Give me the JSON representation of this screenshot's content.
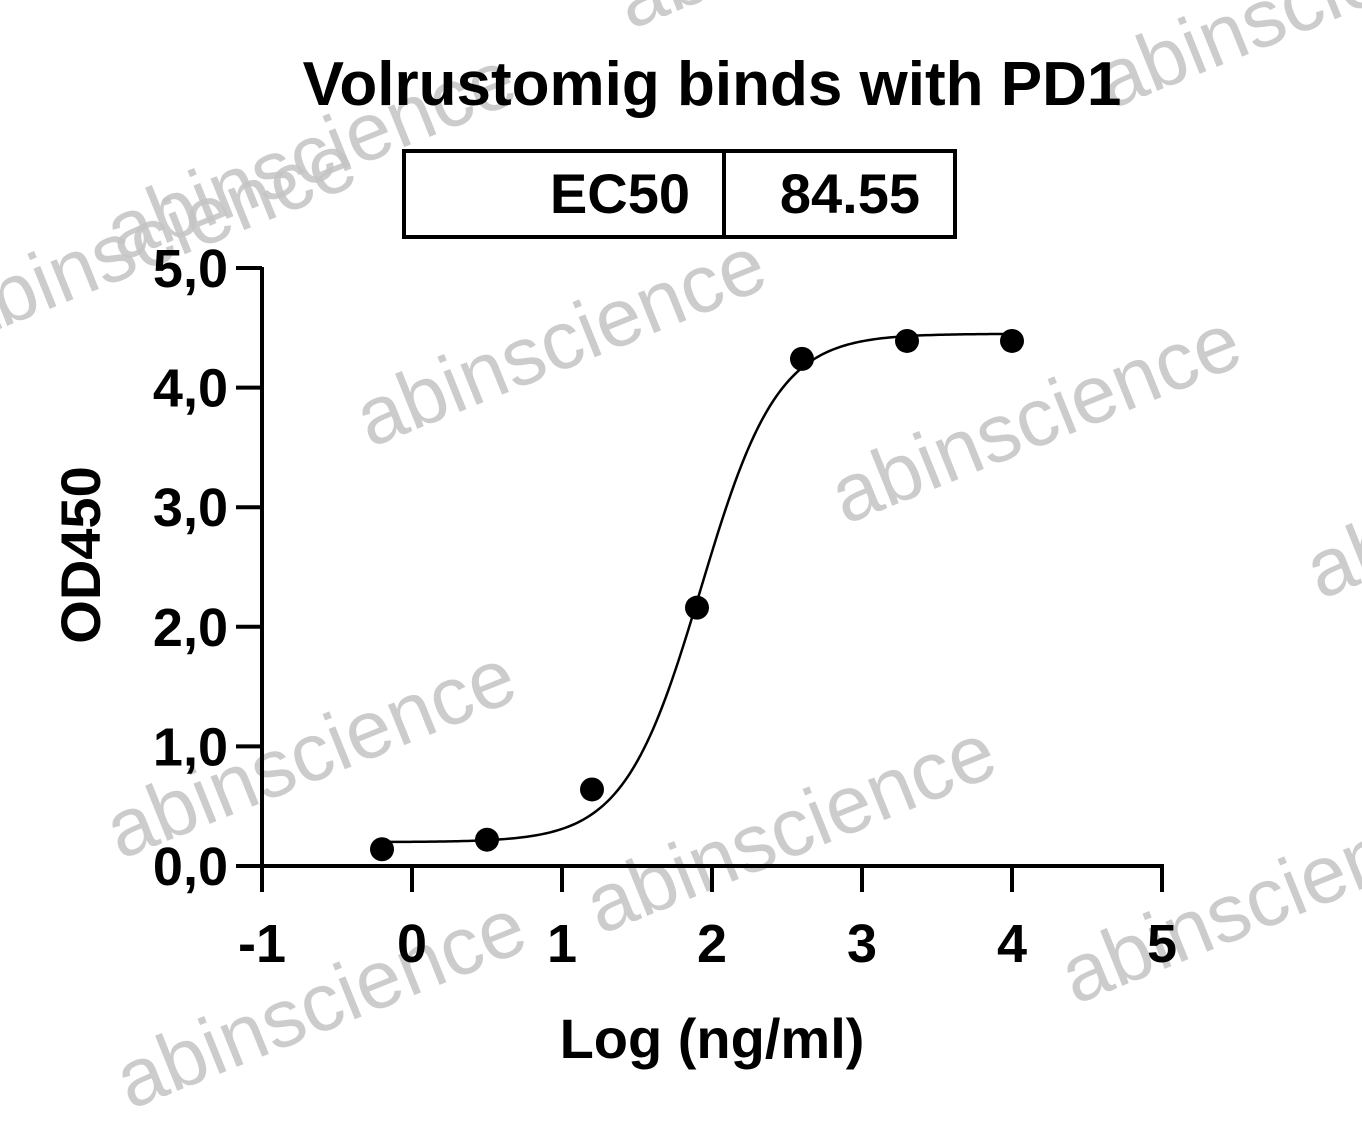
{
  "watermark": {
    "text": "abinscience"
  },
  "chart_data": {
    "type": "scatter",
    "title": "Volrustomig binds with PD1",
    "xlabel": "Log (ng/ml)",
    "ylabel": "OD450",
    "xlim": [
      -1,
      5
    ],
    "ylim": [
      0,
      5
    ],
    "x_ticks": [
      "-1",
      "0",
      "1",
      "2",
      "3",
      "4",
      "5"
    ],
    "x_tick_values": [
      -1,
      0,
      1,
      2,
      3,
      4,
      5
    ],
    "y_ticks": [
      "0,0",
      "1,0",
      "2,0",
      "3,0",
      "4,0",
      "5,0"
    ],
    "y_tick_values": [
      0,
      1,
      2,
      3,
      4,
      5
    ],
    "grid": false,
    "legend": "none",
    "ec50_table": {
      "label": "EC50",
      "value": "84.55"
    },
    "series": [
      {
        "marker_color": "#000000",
        "x": [
          -0.2,
          0.5,
          1.2,
          1.9,
          2.6,
          3.3,
          4.0
        ],
        "y": [
          0.14,
          0.22,
          0.64,
          2.16,
          4.24,
          4.39,
          4.39
        ]
      }
    ],
    "fit_curve": {
      "model": "4PL",
      "bottom": 0.2,
      "top": 4.45,
      "log_ec50": 1.927,
      "hill_slope": 1.7,
      "x_range": [
        -0.2,
        4.0
      ]
    }
  }
}
